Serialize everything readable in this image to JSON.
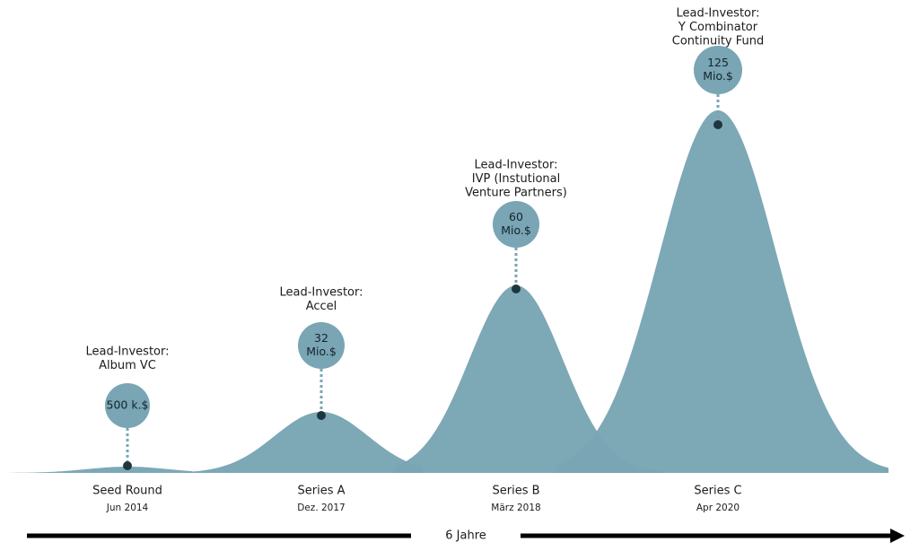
{
  "rounds": [
    {
      "name": "Seed Round",
      "date": "Jun 2014",
      "amount": [
        "500 k.$"
      ],
      "investor": [
        "Lead-Investor:",
        "Album VC"
      ]
    },
    {
      "name": "Series A",
      "date": "Dez. 2017",
      "amount": [
        "32",
        "Mio.$"
      ],
      "investor": [
        "Lead-Investor:",
        "Accel"
      ]
    },
    {
      "name": "Series B",
      "date": "März 2018",
      "amount": [
        "60",
        "Mio.$"
      ],
      "investor": [
        "Lead-Investor:",
        "IVP (Instutional",
        "Venture Partners)"
      ]
    },
    {
      "name": "Series C",
      "date": "Apr 2020",
      "amount": [
        "125",
        "Mio.$"
      ],
      "investor": [
        "Lead-Investor:",
        "Y Combinator",
        "Continuity Fund"
      ]
    }
  ],
  "duration": "6 Jahre"
}
